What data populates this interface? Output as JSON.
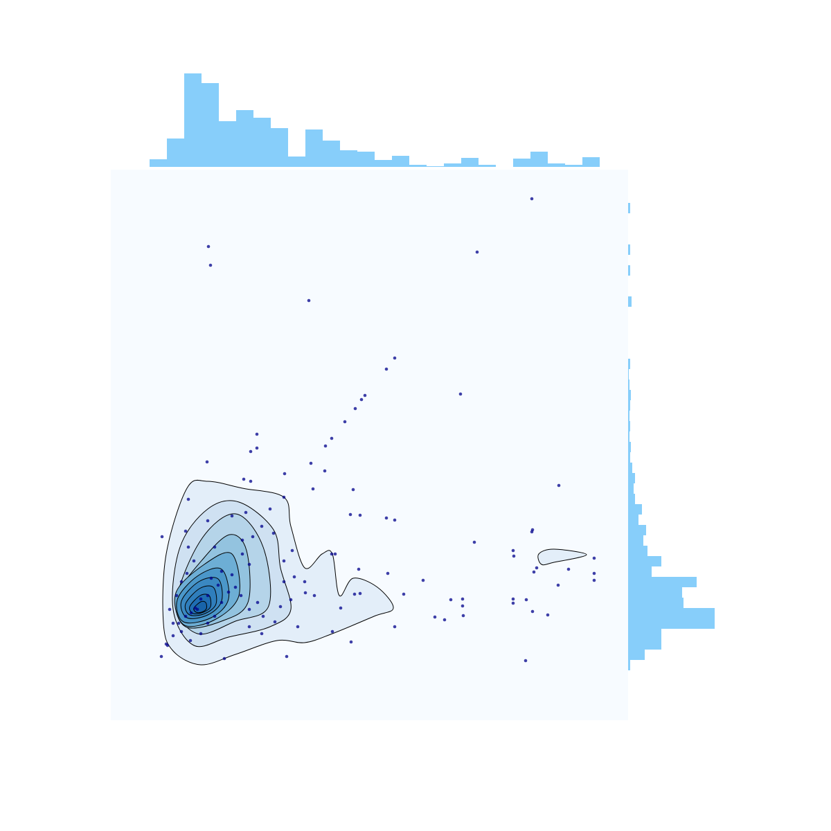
{
  "chart_data": {
    "type": "scatter",
    "color": "#00008b",
    "background": "#f7fbff",
    "xlim": [
      0,
      747
    ],
    "ylim": [
      0,
      795
    ],
    "x": [
      608,
      141,
      144,
      529,
      286,
      410,
      398,
      367,
      362,
      505,
      353,
      338,
      319,
      310,
      211,
      211,
      202,
      139,
      289,
      251,
      309,
      192,
      202,
      292,
      350,
      647,
      250,
      112,
      346,
      360,
      398,
      410,
      609,
      608,
      74,
      525,
      581,
      582,
      698,
      615,
      611,
      661,
      698,
      698,
      646,
      451,
      400,
      423,
      281,
      491,
      508,
      508,
      509,
      581,
      581,
      600,
      609,
      631,
      468,
      482,
      599,
      410,
      347,
      254,
      164,
      73,
      80,
      319,
      324,
      358,
      352,
      360,
      332,
      294,
      260,
      245,
      237,
      220,
      212,
      200,
      188,
      180,
      175,
      190,
      205,
      218,
      235,
      230,
      195,
      175,
      140,
      108,
      112,
      120,
      110,
      102,
      95,
      85,
      90,
      102,
      115,
      130,
      140,
      150,
      160,
      170,
      155,
      140,
      125,
      130,
      145,
      160,
      122,
      116,
      108,
      98,
      90,
      82,
      200,
      218,
      270,
      320,
      265,
      280,
      250,
      262,
      200,
      190,
      150,
      250
    ],
    "y": [
      753,
      684,
      657,
      676,
      606,
      523,
      507,
      469,
      463,
      471,
      450,
      431,
      407,
      396,
      413,
      393,
      388,
      373,
      371,
      356,
      360,
      348,
      345,
      334,
      333,
      339,
      322,
      319,
      297,
      296,
      292,
      289,
      275,
      272,
      265,
      257,
      245,
      237,
      234,
      220,
      214,
      218,
      212,
      202,
      195,
      202,
      212,
      182,
      184,
      174,
      175,
      165,
      151,
      175,
      169,
      174,
      157,
      152,
      149,
      145,
      86,
      135,
      113,
      92,
      89,
      92,
      110,
      240,
      240,
      218,
      182,
      183,
      162,
      180,
      174,
      164,
      142,
      150,
      170,
      160,
      180,
      192,
      210,
      240,
      265,
      280,
      270,
      305,
      300,
      295,
      288,
      273,
      250,
      230,
      212,
      200,
      180,
      160,
      140,
      128,
      115,
      125,
      140,
      150,
      170,
      185,
      195,
      180,
      160,
      175,
      205,
      215,
      162,
      155,
      150,
      140,
      122,
      108,
      135,
      125,
      135,
      128,
      207,
      200,
      230,
      245,
      225,
      260,
      250,
      200
    ],
    "x_hist": {
      "color": "#87cefa",
      "bins": [
        56,
        81,
        106,
        131,
        156,
        181,
        206,
        231,
        256,
        281,
        306,
        331,
        356,
        381,
        406,
        431,
        456,
        481,
        506,
        531,
        556,
        581,
        606,
        631,
        656,
        681,
        706
      ],
      "counts": [
        11,
        41,
        135,
        121,
        66,
        82,
        71,
        56,
        15,
        54,
        38,
        24,
        22,
        10,
        16,
        3,
        1,
        5,
        13,
        3,
        0,
        12,
        22,
        5,
        3,
        14
      ]
    },
    "y_hist": {
      "color": "#87cefa",
      "bins": [
        72,
        87,
        102,
        117,
        132,
        147,
        162,
        177,
        192,
        207,
        222,
        237,
        252,
        267,
        282,
        297,
        312,
        327,
        342,
        357,
        372,
        387,
        402,
        417,
        432,
        447,
        462,
        477,
        492,
        507,
        522,
        537,
        552,
        567,
        582,
        597,
        612,
        627,
        642,
        657,
        672,
        687,
        702,
        717,
        732,
        747,
        762
      ],
      "counts": [
        3,
        24,
        48,
        48,
        125,
        125,
        80,
        78,
        99,
        34,
        48,
        28,
        22,
        26,
        15,
        20,
        10,
        8,
        10,
        6,
        3,
        4,
        2,
        3,
        2,
        3,
        4,
        2,
        1,
        3,
        0,
        0,
        0,
        0,
        0,
        5,
        0,
        0,
        3,
        0,
        3,
        0,
        0,
        0,
        3,
        0
      ]
    }
  }
}
